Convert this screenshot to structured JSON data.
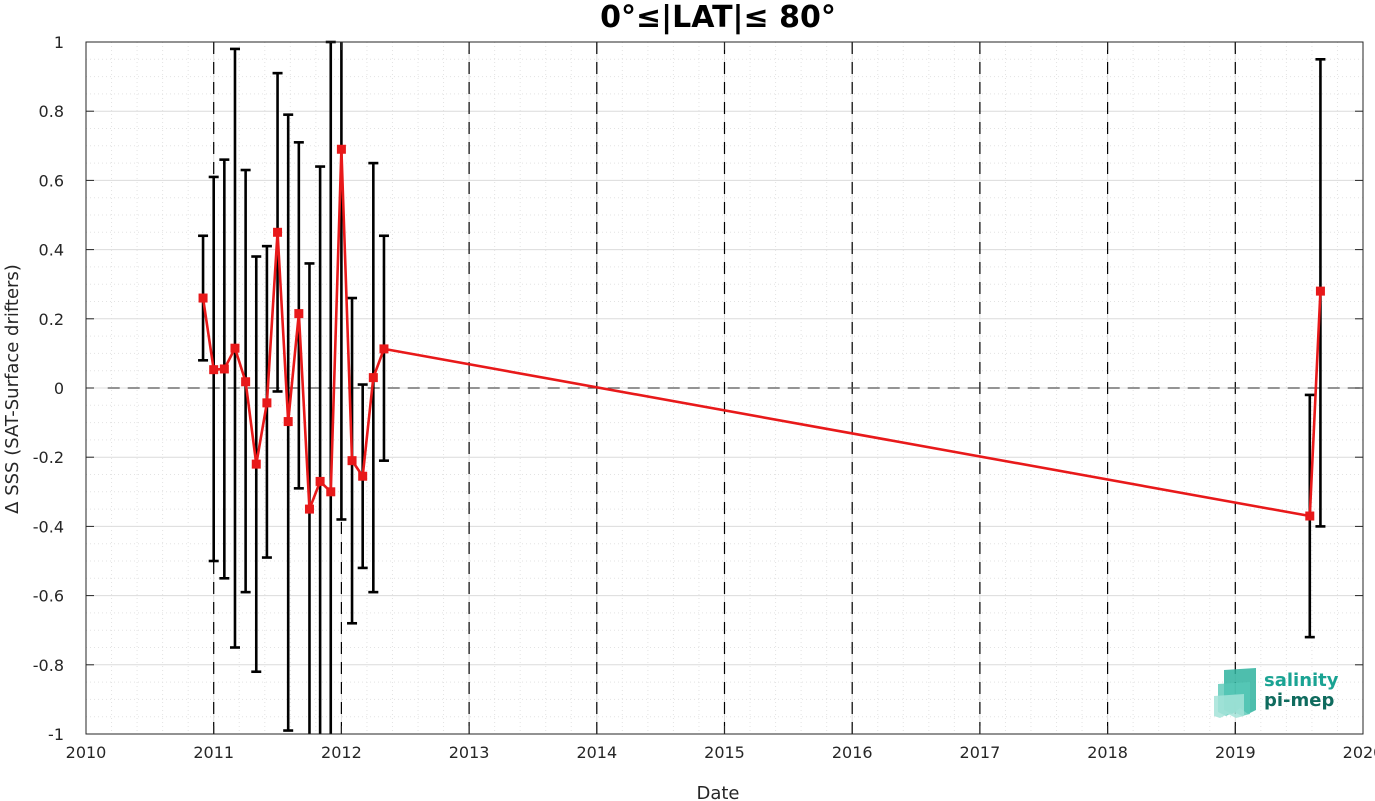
{
  "chart_data": {
    "type": "line",
    "title": "0°≤|LAT|≤ 80°",
    "xlabel": "Date",
    "ylabel": "Δ SSS (SAT-Surface drifters)",
    "xlim": [
      2010,
      2020
    ],
    "ylim": [
      -1,
      1
    ],
    "x_ticks": [
      "2010",
      "2011",
      "2012",
      "2013",
      "2014",
      "2015",
      "2016",
      "2017",
      "2018",
      "2019",
      "2020"
    ],
    "y_ticks": [
      "-1",
      "-0.8",
      "-0.6",
      "-0.4",
      "-0.2",
      "0",
      "0.2",
      "0.4",
      "0.6",
      "0.8",
      "1"
    ],
    "grid": true,
    "zero_line": true,
    "year_boundary_lines": true,
    "series": [
      {
        "color": "#e8191a",
        "marker": "square",
        "points": [
          {
            "x": "2010-12",
            "y": 0.26,
            "err_low": 0.08,
            "err_high": 0.44
          },
          {
            "x": "2011-01",
            "y": 0.053,
            "err_low": -0.5,
            "err_high": 0.61
          },
          {
            "x": "2011-02",
            "y": 0.055,
            "err_low": -0.55,
            "err_high": 0.66
          },
          {
            "x": "2011-03",
            "y": 0.115,
            "err_low": -0.75,
            "err_high": 0.98
          },
          {
            "x": "2011-04",
            "y": 0.018,
            "err_low": -0.59,
            "err_high": 0.63
          },
          {
            "x": "2011-05",
            "y": -0.22,
            "err_low": -0.82,
            "err_high": 0.38
          },
          {
            "x": "2011-06",
            "y": -0.043,
            "err_low": -0.49,
            "err_high": 0.41
          },
          {
            "x": "2011-07",
            "y": 0.45,
            "err_low": -0.01,
            "err_high": 0.91
          },
          {
            "x": "2011-08",
            "y": -0.097,
            "err_low": -0.99,
            "err_high": 0.79
          },
          {
            "x": "2011-09",
            "y": 0.215,
            "err_low": -0.29,
            "err_high": 0.71
          },
          {
            "x": "2011-10",
            "y": -0.35,
            "err_low": -1.06,
            "err_high": 0.36
          },
          {
            "x": "2011-11",
            "y": -0.27,
            "err_low": -1.18,
            "err_high": 0.64
          },
          {
            "x": "2011-12",
            "y": -0.3,
            "err_low": -1.6,
            "err_high": 1.0
          },
          {
            "x": "2012-01",
            "y": 0.69,
            "err_low": -0.38,
            "err_high": 1.76
          },
          {
            "x": "2012-02",
            "y": -0.21,
            "err_low": -0.68,
            "err_high": 0.26
          },
          {
            "x": "2012-03",
            "y": -0.255,
            "err_low": -0.52,
            "err_high": 0.01
          },
          {
            "x": "2012-04",
            "y": 0.03,
            "err_low": -0.59,
            "err_high": 0.65
          },
          {
            "x": "2012-05",
            "y": 0.113,
            "err_low": -0.21,
            "err_high": 0.44
          },
          {
            "x": "2019-08",
            "y": -0.37,
            "err_low": -0.72,
            "err_high": -0.02
          },
          {
            "x": "2019-09",
            "y": 0.28,
            "err_low": -0.4,
            "err_high": 0.95
          }
        ]
      }
    ]
  },
  "logo": {
    "line1": "salinity",
    "line2": "pi-mep",
    "color_line1": "#1aa393",
    "color_line2": "#0f6b5e"
  },
  "colors": {
    "series": "#e8191a",
    "errorbar": "#000000",
    "axis": "#262626",
    "grid": "#d9d9d9"
  }
}
